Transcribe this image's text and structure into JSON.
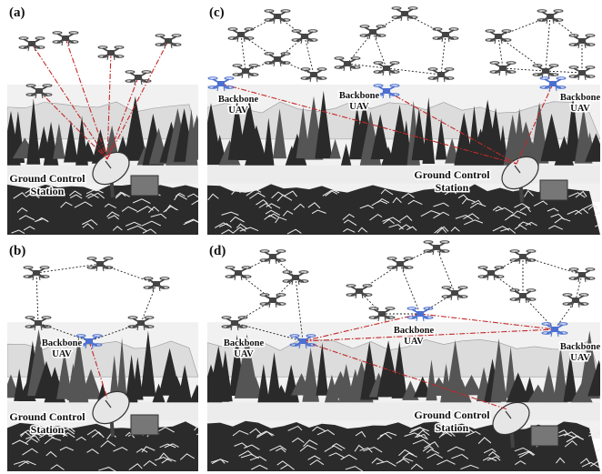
{
  "panels": [
    {
      "label": "(a)",
      "station": [
        "Ground Control",
        "Station"
      ],
      "backbone": []
    },
    {
      "label": "(b)",
      "station": [
        "Ground Control",
        "Station"
      ],
      "backbone": [
        [
          "Backbone",
          "UAV"
        ]
      ]
    },
    {
      "label": "(c)",
      "station": [
        "Ground Control",
        "Station"
      ],
      "backbone": [
        [
          "Backbone",
          "UAV"
        ],
        [
          "Backbone",
          "UAV"
        ],
        [
          "Backbone",
          "UAV"
        ]
      ]
    },
    {
      "label": "(d)",
      "station": [
        "Ground Control",
        "Station"
      ],
      "backbone": [
        [
          "Backbone",
          "UAV"
        ],
        [
          "Backbone",
          "UAV"
        ],
        [
          "Backbone",
          "UAV"
        ]
      ]
    }
  ]
}
